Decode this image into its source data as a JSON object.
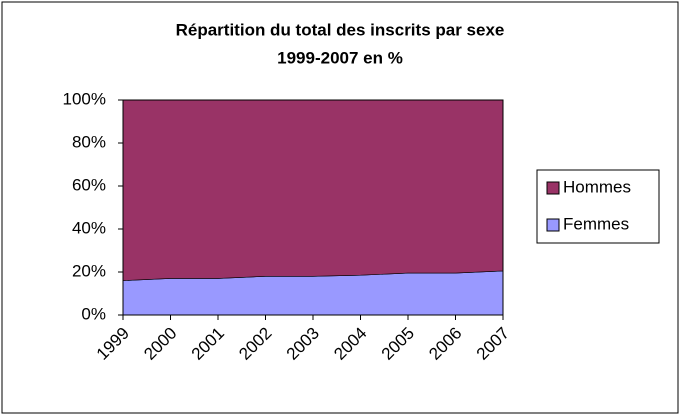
{
  "chart_data": {
    "type": "area",
    "stacked": true,
    "title": [
      "Répartition du total des inscrits par sexe",
      "1999-2007 en %"
    ],
    "categories": [
      "1999",
      "2000",
      "2001",
      "2002",
      "2003",
      "2004",
      "2005",
      "2006",
      "2007"
    ],
    "series": [
      {
        "name": "Femmes",
        "color": "#9999ff",
        "values": [
          16,
          17,
          17,
          18,
          18,
          18.5,
          19.5,
          19.5,
          20.5
        ]
      },
      {
        "name": "Hommes",
        "color": "#993366",
        "values": [
          84,
          83,
          83,
          82,
          82,
          81.5,
          80.5,
          80.5,
          79.5
        ]
      }
    ],
    "ylim": [
      0,
      100
    ],
    "yticks": [
      {
        "value": 0,
        "label": "0%"
      },
      {
        "value": 20,
        "label": "20%"
      },
      {
        "value": 40,
        "label": "40%"
      },
      {
        "value": 60,
        "label": "60%"
      },
      {
        "value": 80,
        "label": "80%"
      },
      {
        "value": 100,
        "label": "100%"
      }
    ],
    "legend": "right"
  }
}
